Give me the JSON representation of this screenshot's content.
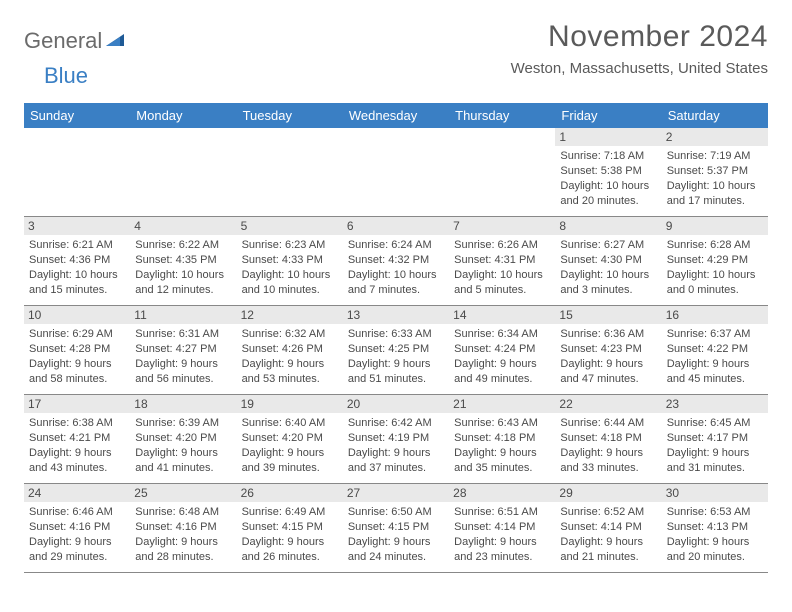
{
  "logo": {
    "part1": "General",
    "part2": "Blue"
  },
  "title": "November 2024",
  "location": "Weston, Massachusetts, United States",
  "colors": {
    "header_bg": "#3a7fc4",
    "header_text": "#ffffff",
    "daynum_bg": "#e9e9e9",
    "text": "#4a4a4a",
    "title_text": "#5a5a5a",
    "logo_gray": "#6b6b6b",
    "separator": "#f0f0f0",
    "border": "#888888"
  },
  "dayNames": [
    "Sunday",
    "Monday",
    "Tuesday",
    "Wednesday",
    "Thursday",
    "Friday",
    "Saturday"
  ],
  "weeks": [
    [
      {
        "day": null
      },
      {
        "day": null
      },
      {
        "day": null
      },
      {
        "day": null
      },
      {
        "day": null
      },
      {
        "day": "1",
        "sunrise": "Sunrise: 7:18 AM",
        "sunset": "Sunset: 5:38 PM",
        "daylight1": "Daylight: 10 hours",
        "daylight2": "and 20 minutes."
      },
      {
        "day": "2",
        "sunrise": "Sunrise: 7:19 AM",
        "sunset": "Sunset: 5:37 PM",
        "daylight1": "Daylight: 10 hours",
        "daylight2": "and 17 minutes."
      }
    ],
    [
      {
        "day": "3",
        "sunrise": "Sunrise: 6:21 AM",
        "sunset": "Sunset: 4:36 PM",
        "daylight1": "Daylight: 10 hours",
        "daylight2": "and 15 minutes."
      },
      {
        "day": "4",
        "sunrise": "Sunrise: 6:22 AM",
        "sunset": "Sunset: 4:35 PM",
        "daylight1": "Daylight: 10 hours",
        "daylight2": "and 12 minutes."
      },
      {
        "day": "5",
        "sunrise": "Sunrise: 6:23 AM",
        "sunset": "Sunset: 4:33 PM",
        "daylight1": "Daylight: 10 hours",
        "daylight2": "and 10 minutes."
      },
      {
        "day": "6",
        "sunrise": "Sunrise: 6:24 AM",
        "sunset": "Sunset: 4:32 PM",
        "daylight1": "Daylight: 10 hours",
        "daylight2": "and 7 minutes."
      },
      {
        "day": "7",
        "sunrise": "Sunrise: 6:26 AM",
        "sunset": "Sunset: 4:31 PM",
        "daylight1": "Daylight: 10 hours",
        "daylight2": "and 5 minutes."
      },
      {
        "day": "8",
        "sunrise": "Sunrise: 6:27 AM",
        "sunset": "Sunset: 4:30 PM",
        "daylight1": "Daylight: 10 hours",
        "daylight2": "and 3 minutes."
      },
      {
        "day": "9",
        "sunrise": "Sunrise: 6:28 AM",
        "sunset": "Sunset: 4:29 PM",
        "daylight1": "Daylight: 10 hours",
        "daylight2": "and 0 minutes."
      }
    ],
    [
      {
        "day": "10",
        "sunrise": "Sunrise: 6:29 AM",
        "sunset": "Sunset: 4:28 PM",
        "daylight1": "Daylight: 9 hours",
        "daylight2": "and 58 minutes."
      },
      {
        "day": "11",
        "sunrise": "Sunrise: 6:31 AM",
        "sunset": "Sunset: 4:27 PM",
        "daylight1": "Daylight: 9 hours",
        "daylight2": "and 56 minutes."
      },
      {
        "day": "12",
        "sunrise": "Sunrise: 6:32 AM",
        "sunset": "Sunset: 4:26 PM",
        "daylight1": "Daylight: 9 hours",
        "daylight2": "and 53 minutes."
      },
      {
        "day": "13",
        "sunrise": "Sunrise: 6:33 AM",
        "sunset": "Sunset: 4:25 PM",
        "daylight1": "Daylight: 9 hours",
        "daylight2": "and 51 minutes."
      },
      {
        "day": "14",
        "sunrise": "Sunrise: 6:34 AM",
        "sunset": "Sunset: 4:24 PM",
        "daylight1": "Daylight: 9 hours",
        "daylight2": "and 49 minutes."
      },
      {
        "day": "15",
        "sunrise": "Sunrise: 6:36 AM",
        "sunset": "Sunset: 4:23 PM",
        "daylight1": "Daylight: 9 hours",
        "daylight2": "and 47 minutes."
      },
      {
        "day": "16",
        "sunrise": "Sunrise: 6:37 AM",
        "sunset": "Sunset: 4:22 PM",
        "daylight1": "Daylight: 9 hours",
        "daylight2": "and 45 minutes."
      }
    ],
    [
      {
        "day": "17",
        "sunrise": "Sunrise: 6:38 AM",
        "sunset": "Sunset: 4:21 PM",
        "daylight1": "Daylight: 9 hours",
        "daylight2": "and 43 minutes."
      },
      {
        "day": "18",
        "sunrise": "Sunrise: 6:39 AM",
        "sunset": "Sunset: 4:20 PM",
        "daylight1": "Daylight: 9 hours",
        "daylight2": "and 41 minutes."
      },
      {
        "day": "19",
        "sunrise": "Sunrise: 6:40 AM",
        "sunset": "Sunset: 4:20 PM",
        "daylight1": "Daylight: 9 hours",
        "daylight2": "and 39 minutes."
      },
      {
        "day": "20",
        "sunrise": "Sunrise: 6:42 AM",
        "sunset": "Sunset: 4:19 PM",
        "daylight1": "Daylight: 9 hours",
        "daylight2": "and 37 minutes."
      },
      {
        "day": "21",
        "sunrise": "Sunrise: 6:43 AM",
        "sunset": "Sunset: 4:18 PM",
        "daylight1": "Daylight: 9 hours",
        "daylight2": "and 35 minutes."
      },
      {
        "day": "22",
        "sunrise": "Sunrise: 6:44 AM",
        "sunset": "Sunset: 4:18 PM",
        "daylight1": "Daylight: 9 hours",
        "daylight2": "and 33 minutes."
      },
      {
        "day": "23",
        "sunrise": "Sunrise: 6:45 AM",
        "sunset": "Sunset: 4:17 PM",
        "daylight1": "Daylight: 9 hours",
        "daylight2": "and 31 minutes."
      }
    ],
    [
      {
        "day": "24",
        "sunrise": "Sunrise: 6:46 AM",
        "sunset": "Sunset: 4:16 PM",
        "daylight1": "Daylight: 9 hours",
        "daylight2": "and 29 minutes."
      },
      {
        "day": "25",
        "sunrise": "Sunrise: 6:48 AM",
        "sunset": "Sunset: 4:16 PM",
        "daylight1": "Daylight: 9 hours",
        "daylight2": "and 28 minutes."
      },
      {
        "day": "26",
        "sunrise": "Sunrise: 6:49 AM",
        "sunset": "Sunset: 4:15 PM",
        "daylight1": "Daylight: 9 hours",
        "daylight2": "and 26 minutes."
      },
      {
        "day": "27",
        "sunrise": "Sunrise: 6:50 AM",
        "sunset": "Sunset: 4:15 PM",
        "daylight1": "Daylight: 9 hours",
        "daylight2": "and 24 minutes."
      },
      {
        "day": "28",
        "sunrise": "Sunrise: 6:51 AM",
        "sunset": "Sunset: 4:14 PM",
        "daylight1": "Daylight: 9 hours",
        "daylight2": "and 23 minutes."
      },
      {
        "day": "29",
        "sunrise": "Sunrise: 6:52 AM",
        "sunset": "Sunset: 4:14 PM",
        "daylight1": "Daylight: 9 hours",
        "daylight2": "and 21 minutes."
      },
      {
        "day": "30",
        "sunrise": "Sunrise: 6:53 AM",
        "sunset": "Sunset: 4:13 PM",
        "daylight1": "Daylight: 9 hours",
        "daylight2": "and 20 minutes."
      }
    ]
  ]
}
